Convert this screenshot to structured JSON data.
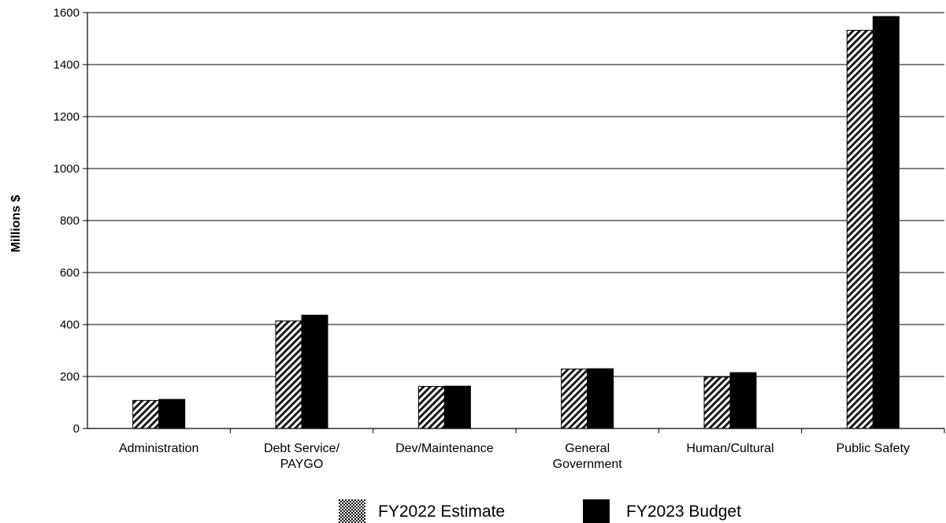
{
  "chart_data": {
    "type": "bar",
    "title": "",
    "xlabel": "",
    "ylabel": "Millions $",
    "ylim": [
      0,
      1600
    ],
    "yticks": [
      0,
      200,
      400,
      600,
      800,
      1000,
      1200,
      1400,
      1600
    ],
    "grid": true,
    "legend_position": "bottom",
    "categories": [
      [
        "Administration"
      ],
      [
        "Debt Service/",
        "PAYGO"
      ],
      [
        "Dev/Maintenance"
      ],
      [
        "General",
        "Government"
      ],
      [
        "Human/Cultural"
      ],
      [
        "Public Safety"
      ]
    ],
    "series": [
      {
        "name": "FY2022 Estimate",
        "pattern": "diagonal-hatch",
        "color": "#1a1a1a",
        "values": [
          108,
          414,
          162,
          229,
          198,
          1532
        ]
      },
      {
        "name": "FY2023 Budget",
        "pattern": "solid",
        "color": "#000000",
        "values": [
          112,
          436,
          163,
          230,
          215,
          1585
        ]
      }
    ]
  }
}
